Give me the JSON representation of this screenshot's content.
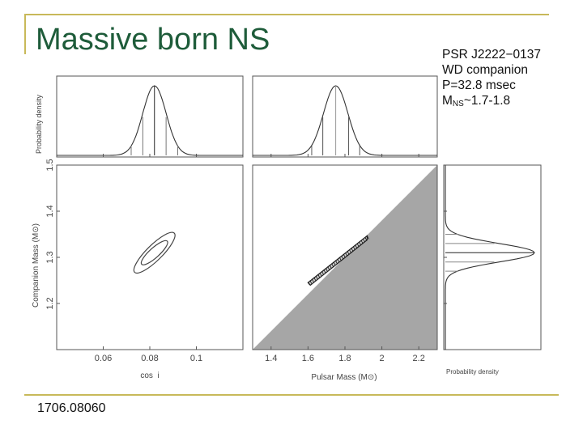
{
  "slide": {
    "title": "Massive born NS",
    "info_lines": [
      "PSR J2222−0137",
      "WD companion",
      "P=32.8 msec"
    ],
    "mns_label": "M",
    "mns_sub": "NS",
    "mns_value": "~1.7-1.8",
    "reference": "1706.08060"
  },
  "colors": {
    "title": "#1e5c3a",
    "frame": "#c8b95a",
    "excluded_region": "#a6a6a6"
  },
  "chart_data": [
    {
      "type": "line",
      "panel": "top-left",
      "title": "",
      "ylabel": "Probability density",
      "xlim": [
        0.04,
        0.12
      ],
      "series": [
        {
          "x": [
            0.072,
            0.077,
            0.082,
            0.087,
            0.092
          ],
          "y": [
            0.14,
            0.55,
            1.0,
            0.55,
            0.14
          ]
        }
      ]
    },
    {
      "type": "line",
      "panel": "top-middle",
      "title": "",
      "xlim": [
        1.3,
        2.3
      ],
      "series": [
        {
          "x": [
            1.62,
            1.68,
            1.75,
            1.82,
            1.88
          ],
          "y": [
            0.14,
            0.55,
            1.0,
            0.55,
            0.14
          ]
        }
      ]
    },
    {
      "type": "line",
      "panel": "right",
      "title": "",
      "xlabel": "Probability density",
      "ylim": [
        1.1,
        1.5
      ],
      "series": [
        {
          "x": [
            0.14,
            0.55,
            1.0,
            0.55,
            0.14
          ],
          "y": [
            1.27,
            1.29,
            1.31,
            1.33,
            1.35
          ]
        }
      ]
    },
    {
      "type": "scatter",
      "panel": "bottom-left",
      "title": "",
      "xlabel": "cos  i",
      "ylabel": "Companion Mass (M⊙)",
      "xticks": [
        0.06,
        0.08,
        0.1
      ],
      "xlim": [
        0.04,
        0.12
      ],
      "yticks": [
        1.2,
        1.3,
        1.4,
        1.5
      ],
      "ylim": [
        1.1,
        1.5
      ],
      "contours": [
        {
          "center": [
            0.082,
            1.31
          ],
          "extent_x": [
            0.074,
            0.091
          ],
          "extent_y": [
            1.265,
            1.35
          ]
        },
        {
          "center": [
            0.082,
            1.31
          ],
          "extent_x": [
            0.077,
            0.088
          ],
          "extent_y": [
            1.285,
            1.335
          ]
        }
      ]
    },
    {
      "type": "scatter",
      "panel": "bottom-middle",
      "title": "",
      "xlabel": "Pulsar Mass (M⊙)",
      "xticks": [
        1.4,
        1.6,
        1.8,
        2,
        2.2
      ],
      "xlim": [
        1.3,
        2.3
      ],
      "ylim": [
        1.1,
        1.5
      ],
      "excluded_region": "shaded",
      "band": {
        "x": [
          1.6,
          1.92
        ],
        "y": [
          1.245,
          1.345
        ]
      }
    }
  ],
  "ticks": {
    "cos_i": [
      "0.06",
      "0.08",
      "0.1"
    ],
    "pulsar_mass": [
      "1.4",
      "1.6",
      "1.8",
      "2",
      "2.2"
    ],
    "companion_mass": [
      "1.2",
      "1.3",
      "1.4",
      "1.5"
    ]
  },
  "axis_labels": {
    "prob_density_top": "Probability density",
    "companion_mass": "Companion Mass (M⊙)",
    "cos_i": "cos  i",
    "pulsar_mass": "Pulsar Mass (M⊙)",
    "prob_density_right": "Probability density"
  }
}
